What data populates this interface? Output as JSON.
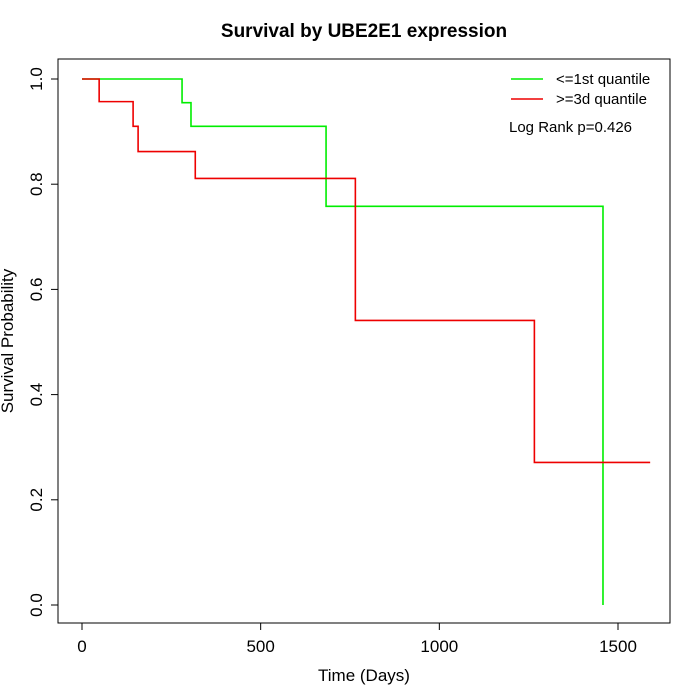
{
  "chart_data": {
    "type": "line",
    "title": "Survival by UBE2E1 expression",
    "xlabel": "Time (Days)",
    "ylabel": "Survival Probability",
    "xlim": [
      0,
      1600
    ],
    "ylim": [
      0,
      1.0
    ],
    "x_ticks": [
      0,
      500,
      1000,
      1500
    ],
    "x_tick_labels": [
      "0",
      "500",
      "1000",
      "1500"
    ],
    "y_ticks": [
      0.0,
      0.2,
      0.4,
      0.6,
      0.8,
      1.0
    ],
    "y_tick_labels": [
      "0.0",
      "0.2",
      "0.4",
      "0.6",
      "0.8",
      "1.0"
    ],
    "grid": false,
    "legend_position": "top-right",
    "annotation": "Log Rank p=0.426",
    "series": [
      {
        "name": "<=1st quantile",
        "color": "#00ee00",
        "step": true,
        "x": [
          0,
          280,
          305,
          683,
          1458,
          1458
        ],
        "y": [
          1.0,
          0.955,
          0.91,
          0.758,
          0.758,
          0.0
        ]
      },
      {
        "name": ">=3d quantile",
        "color": "#ee0000",
        "step": true,
        "x": [
          0,
          48,
          143,
          157,
          317,
          765,
          1266,
          1590
        ],
        "y": [
          1.0,
          0.957,
          0.91,
          0.862,
          0.811,
          0.541,
          0.271,
          0.271
        ]
      }
    ]
  }
}
